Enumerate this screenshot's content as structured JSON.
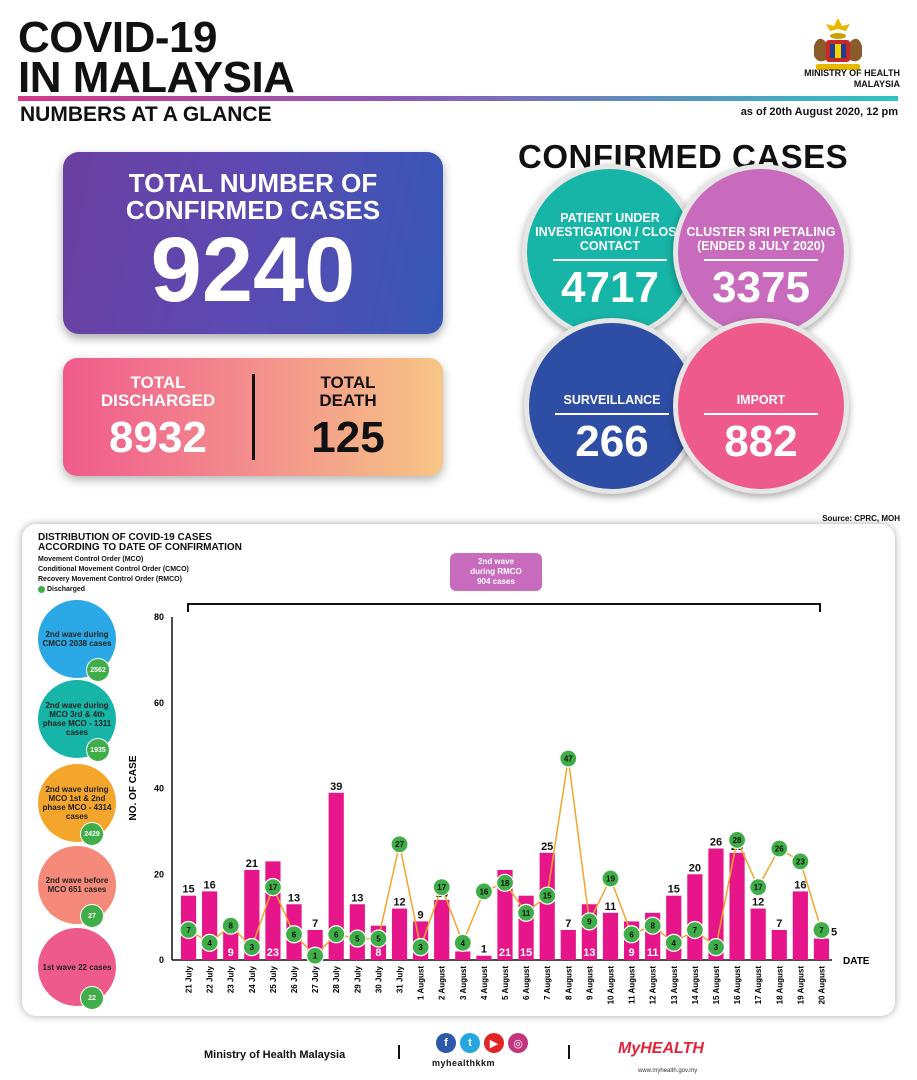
{
  "header": {
    "title_line1": "COVID-19",
    "title_line2": "IN MALAYSIA",
    "subtitle": "NUMBERS AT A GLANCE",
    "ministry_line1": "MINISTRY OF HEALTH",
    "ministry_line2": "MALAYSIA",
    "as_of": "as of 20th August 2020, 12 pm"
  },
  "totals": {
    "confirmed_label_line1": "TOTAL NUMBER OF",
    "confirmed_label_line2": "CONFIRMED CASES",
    "confirmed_value": "9240",
    "discharged_label_line1": "TOTAL",
    "discharged_label_line2": "DISCHARGED",
    "discharged_value": "8932",
    "death_label_line1": "TOTAL",
    "death_label_line2": "DEATH",
    "death_value": "125"
  },
  "confirmed_cases": {
    "title": "CONFIRMED CASES",
    "items": [
      {
        "label": "PATIENT UNDER INVESTIGATION / CLOSE CONTACT",
        "value": "4717",
        "color": "#17b5a7"
      },
      {
        "label": "CLUSTER SRI PETALING (ENDED 8 JULY 2020)",
        "value": "3375",
        "color": "#c86bbd"
      },
      {
        "label": "SURVEILLANCE",
        "value": "266",
        "color": "#2e4ea6"
      },
      {
        "label": "IMPORT",
        "value": "882",
        "color": "#ee5a8c"
      }
    ]
  },
  "source": "Source: CPRC, MOH",
  "legend": {
    "title_line1": "DISTRIBUTION OF COVID-19 CASES",
    "title_line2": "ACCORDING TO DATE OF CONFIRMATION",
    "mco": "Movement Control Order (MCO)",
    "cmco": "Conditional Movement Control Order (CMCO)",
    "rmco": "Recovery Movement Control Order (RMCO)",
    "discharged": "Discharged"
  },
  "waves": [
    {
      "label": "2nd wave during CMCO 2038 cases",
      "discharged": "2562",
      "color": "#2aa9e6"
    },
    {
      "label": "2nd wave during MCO 3rd & 4th phase MCO - 1311 cases",
      "discharged": "1935",
      "color": "#17b5a7"
    },
    {
      "label": "2nd wave during MCO 1st & 2nd phase MCO - 4314 cases",
      "discharged": "2429",
      "color": "#f4a52c"
    },
    {
      "label": "2nd wave before MCO 651 cases",
      "discharged": "27",
      "color": "#f58a7a"
    },
    {
      "label": "1st wave 22 cases",
      "discharged": "22",
      "color": "#ee5a8c"
    }
  ],
  "rmco_box": {
    "line1": "2nd wave",
    "line2": "during RMCO",
    "line3": "904 cases"
  },
  "chart_data": {
    "type": "bar",
    "title": "DISTRIBUTION OF COVID-19 CASES ACCORDING TO DATE OF CONFIRMATION",
    "xlabel": "DATE",
    "ylabel": "NO. OF CASE",
    "ylim": [
      0,
      80
    ],
    "yticks": [
      "0",
      "20",
      "40",
      "60",
      "80"
    ],
    "categories": [
      "21 July",
      "22 July",
      "23 July",
      "24 July",
      "25 July",
      "26 July",
      "27 July",
      "28 July",
      "29 July",
      "30 July",
      "31 July",
      "1 August",
      "2 August",
      "3 August",
      "4 August",
      "5 August",
      "6 August",
      "7 August",
      "8 August",
      "9 August",
      "10 August",
      "11 August",
      "12 August",
      "13 August",
      "14 August",
      "15 August",
      "16 August",
      "17 August",
      "18 August",
      "19 August",
      "20 August"
    ],
    "series": [
      {
        "name": "",
        "values": [
          15,
          16,
          9,
          21,
          23,
          13,
          7,
          39,
          13,
          8,
          12,
          9,
          14,
          2,
          1,
          21,
          15,
          25,
          7,
          13,
          11,
          9,
          11,
          15,
          20,
          26,
          25,
          12,
          7,
          16,
          5
        ],
        "color": "#e6168a"
      },
      {
        "name": "Discharged",
        "values": [
          7,
          4,
          8,
          3,
          17,
          6,
          1,
          6,
          5,
          5,
          27,
          3,
          17,
          4,
          16,
          18,
          11,
          15,
          47,
          9,
          19,
          6,
          8,
          4,
          7,
          3,
          28,
          17,
          26,
          23,
          7
        ],
        "color": "#3fae49"
      }
    ]
  },
  "footer": {
    "ministry": "Ministry of Health Malaysia",
    "handle": "myhealthkkm",
    "myhealth": "MyHEALTH",
    "myhealth_sub": "www.myhealth.gov.my"
  }
}
